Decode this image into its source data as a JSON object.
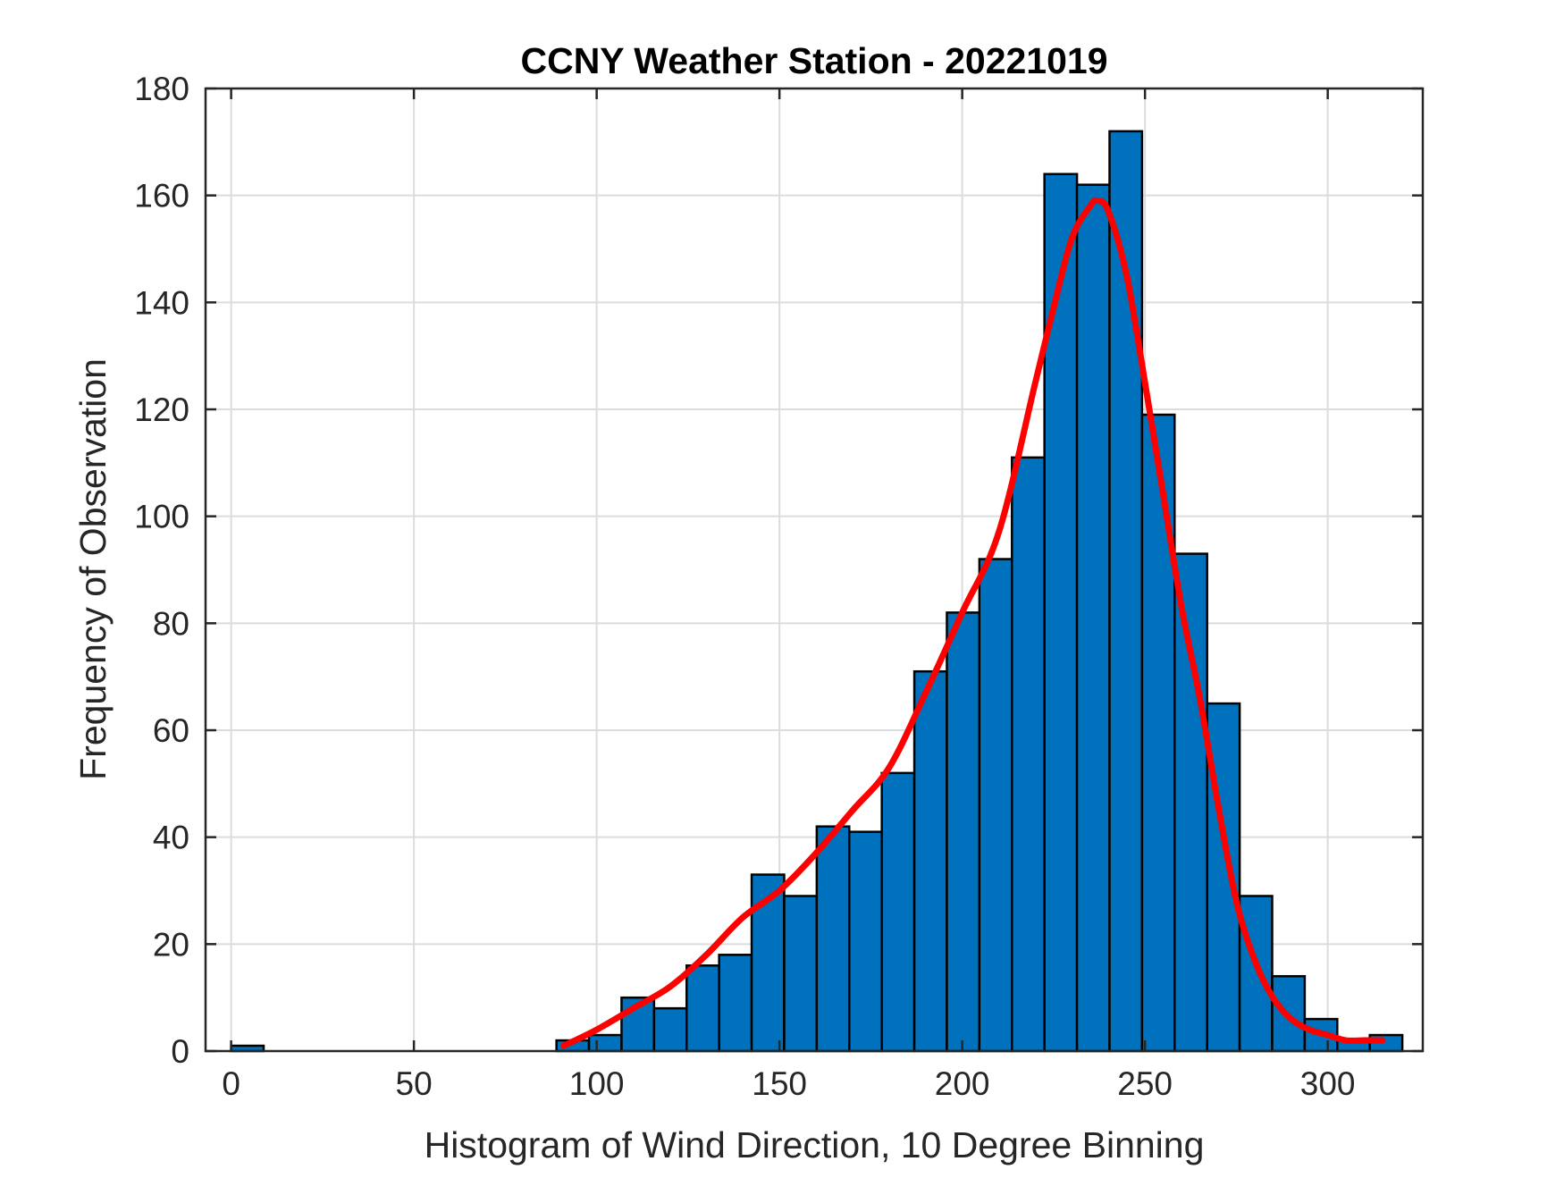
{
  "chart_data": {
    "type": "bar",
    "title": "CCNY Weather Station - 20221019",
    "xlabel": "Histogram of Wind Direction, 10 Degree Binning",
    "ylabel": "Frequency of Observation",
    "xlim": [
      -7,
      326
    ],
    "ylim": [
      0,
      180
    ],
    "xticks": [
      0,
      50,
      100,
      150,
      200,
      250,
      300
    ],
    "yticks": [
      0,
      20,
      40,
      60,
      80,
      100,
      120,
      140,
      160,
      180
    ],
    "grid": true,
    "bin_width": 8.9,
    "bins": [
      {
        "start": 0.0,
        "count": 1
      },
      {
        "start": 89.0,
        "count": 2
      },
      {
        "start": 97.9,
        "count": 3
      },
      {
        "start": 106.8,
        "count": 10
      },
      {
        "start": 115.7,
        "count": 8
      },
      {
        "start": 124.6,
        "count": 16
      },
      {
        "start": 133.5,
        "count": 18
      },
      {
        "start": 142.4,
        "count": 33
      },
      {
        "start": 151.3,
        "count": 29
      },
      {
        "start": 160.2,
        "count": 42
      },
      {
        "start": 169.1,
        "count": 41
      },
      {
        "start": 178.0,
        "count": 52
      },
      {
        "start": 186.9,
        "count": 71
      },
      {
        "start": 195.8,
        "count": 82
      },
      {
        "start": 204.7,
        "count": 92
      },
      {
        "start": 213.6,
        "count": 111
      },
      {
        "start": 222.5,
        "count": 164
      },
      {
        "start": 231.4,
        "count": 162
      },
      {
        "start": 240.3,
        "count": 172
      },
      {
        "start": 249.2,
        "count": 119
      },
      {
        "start": 258.1,
        "count": 93
      },
      {
        "start": 267.0,
        "count": 65
      },
      {
        "start": 275.9,
        "count": 29
      },
      {
        "start": 284.8,
        "count": 14
      },
      {
        "start": 293.7,
        "count": 6
      },
      {
        "start": 302.6,
        "count": 2
      },
      {
        "start": 311.5,
        "count": 3
      }
    ],
    "fit_curve": {
      "x": [
        91,
        100,
        110,
        120,
        130,
        140,
        150,
        160,
        170,
        180,
        190,
        200,
        210,
        220,
        225,
        230,
        235,
        237,
        240,
        245,
        250,
        255,
        260,
        265,
        270,
        275,
        280,
        285,
        290,
        295,
        300,
        305,
        310,
        315
      ],
      "y": [
        1,
        4,
        8,
        12,
        18,
        25,
        30,
        37,
        45,
        53,
        67,
        82,
        97,
        125,
        139,
        152,
        158,
        159,
        157,
        145,
        125,
        104,
        83,
        66,
        46,
        28,
        17,
        10,
        6,
        4,
        3,
        2,
        2,
        2
      ]
    },
    "colors": {
      "bar_fill": "#0072BD",
      "bar_edge": "#000000",
      "fit_line": "#FF0000",
      "grid": "#DCDCDC",
      "axis": "#262626"
    }
  }
}
